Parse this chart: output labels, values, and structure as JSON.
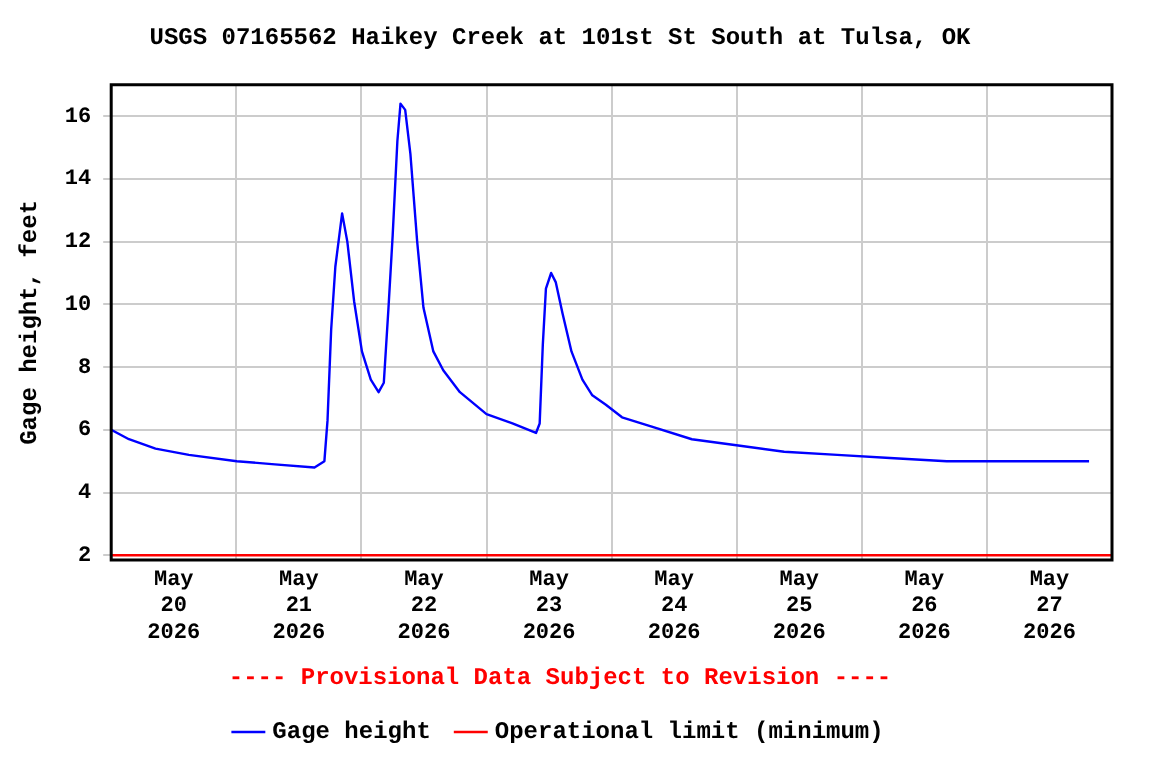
{
  "chart_data": {
    "type": "line",
    "title": "USGS 07165562 Haikey Creek at 101st St South at Tulsa, OK",
    "ylabel": "Gage height, feet",
    "annotations": [
      "---- Provisional Data Subject to Revision ----"
    ],
    "x": [
      "2026-05-20T00:00",
      "2026-05-20T03:24",
      "2026-05-20T08:30",
      "2026-05-20T14:54",
      "2026-05-21T00:06",
      "2026-05-21T07:24",
      "2026-05-21T15:00",
      "2026-05-21T16:54",
      "2026-05-21T17:30",
      "2026-05-21T18:12",
      "2026-05-21T19:00",
      "2026-05-21T20:18",
      "2026-05-21T21:18",
      "2026-05-21T22:36",
      "2026-05-22T00:06",
      "2026-05-22T01:48",
      "2026-05-22T03:18",
      "2026-05-22T04:18",
      "2026-05-22T05:12",
      "2026-05-22T06:00",
      "2026-05-22T06:54",
      "2026-05-22T07:30",
      "2026-05-22T08:24",
      "2026-05-22T09:24",
      "2026-05-22T10:42",
      "2026-05-22T11:54",
      "2026-05-22T13:48",
      "2026-05-22T15:42",
      "2026-05-22T18:54",
      "2026-05-23T00:00",
      "2026-05-23T05:06",
      "2026-05-23T09:30",
      "2026-05-23T10:12",
      "2026-05-23T10:48",
      "2026-05-23T11:24",
      "2026-05-23T12:24",
      "2026-05-23T13:18",
      "2026-05-23T14:36",
      "2026-05-23T16:18",
      "2026-05-23T18:24",
      "2026-05-23T20:18",
      "2026-05-23T22:54",
      "2026-05-24T02:00",
      "2026-05-24T07:42",
      "2026-05-24T15:24",
      "2026-05-25T00:18",
      "2026-05-25T09:06",
      "2026-05-25T19:18",
      "2026-05-26T05:24",
      "2026-05-26T16:18",
      "2026-05-27T08:06",
      "2026-05-27T19:36"
    ],
    "series": [
      {
        "name": "Gage height",
        "color": "#0000ff",
        "values": [
          6.0,
          5.7,
          5.4,
          5.2,
          5.0,
          4.9,
          4.8,
          5.0,
          6.3,
          9.2,
          11.2,
          12.9,
          12.0,
          10.1,
          8.5,
          7.6,
          7.2,
          7.5,
          9.9,
          12.2,
          15.2,
          16.4,
          16.2,
          14.8,
          12.0,
          9.9,
          8.5,
          7.9,
          7.2,
          6.5,
          6.2,
          5.9,
          6.2,
          8.7,
          10.5,
          11.0,
          10.7,
          9.7,
          8.5,
          7.6,
          7.1,
          6.8,
          6.4,
          6.1,
          5.7,
          5.5,
          5.3,
          5.2,
          5.1,
          5.0,
          5.0,
          5.0
        ]
      },
      {
        "name": "Operational limit (minimum)",
        "color": "#ff0000",
        "x": [
          "2026-05-20T00:00",
          "2026-05-28T00:00"
        ],
        "values": [
          2,
          2
        ]
      }
    ],
    "xlim": [
      "2026-05-20T00:00",
      "2026-05-28T00:00"
    ],
    "xticks": [
      {
        "value": "2026-05-20T12:00",
        "label": "May\n20\n2026"
      },
      {
        "value": "2026-05-21T00:00",
        "label": null
      },
      {
        "value": "2026-05-21T12:00",
        "label": "May\n21\n2026"
      },
      {
        "value": "2026-05-22T00:00",
        "label": null
      },
      {
        "value": "2026-05-22T12:00",
        "label": "May\n22\n2026"
      },
      {
        "value": "2026-05-23T00:00",
        "label": null
      },
      {
        "value": "2026-05-23T12:00",
        "label": "May\n23\n2026"
      },
      {
        "value": "2026-05-24T00:00",
        "label": null
      },
      {
        "value": "2026-05-24T12:00",
        "label": "May\n24\n2026"
      },
      {
        "value": "2026-05-25T00:00",
        "label": null
      },
      {
        "value": "2026-05-25T12:00",
        "label": "May\n25\n2026"
      },
      {
        "value": "2026-05-26T00:00",
        "label": null
      },
      {
        "value": "2026-05-26T12:00",
        "label": "May\n26\n2026"
      },
      {
        "value": "2026-05-27T00:00",
        "label": null
      },
      {
        "value": "2026-05-27T12:00",
        "label": "May\n27\n2026"
      }
    ],
    "ylim": [
      1.85,
      17
    ],
    "yticks": [
      2,
      4,
      6,
      8,
      10,
      12,
      14,
      16
    ],
    "grid": true,
    "legend": "bottom",
    "marker": "none",
    "line_style": "solid"
  }
}
